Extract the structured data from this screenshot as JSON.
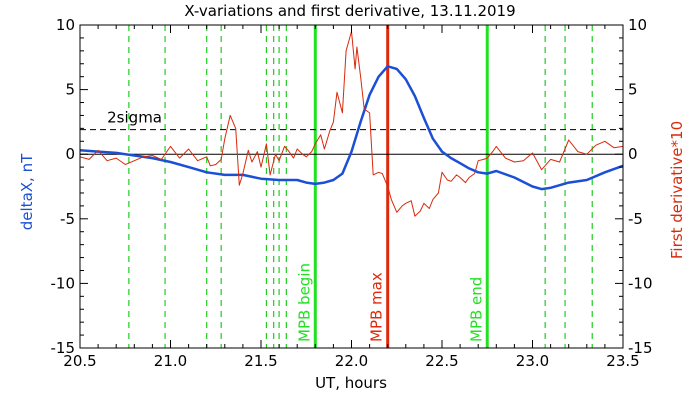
{
  "chart_data": {
    "type": "line",
    "title": "X-variations and first derivative, 13.11.2019",
    "xlabel": "UT, hours",
    "ylabel_left": "deltaX, nT",
    "ylabel_right": "First derivative*10",
    "xlim": [
      20.5,
      23.5
    ],
    "ylim_left": [
      -15,
      10
    ],
    "ylim_right": [
      -15,
      10
    ],
    "x_ticks": [
      "20.5",
      "21.0",
      "21.5",
      "22.0",
      "22.5",
      "23.0",
      "23.5"
    ],
    "x_tick_values": [
      20.5,
      21.0,
      21.5,
      22.0,
      22.5,
      23.0,
      23.5
    ],
    "y_ticks": [
      "10",
      "5",
      "0",
      "-5",
      "-10",
      "-15"
    ],
    "y_tick_values": [
      10,
      5,
      0,
      -5,
      -10,
      -15
    ],
    "grid": false,
    "colors": {
      "deltaX": "#1a4fd6",
      "derivative": "#d8290b",
      "mpb_begin_end": "#22e022",
      "mpb_max": "#e0280c",
      "dashed_green": "#22cc22",
      "axis": "#000000"
    },
    "series": [
      {
        "key": "deltaX",
        "axis": "left",
        "x": [
          20.5,
          20.6,
          20.7,
          20.8,
          20.9,
          21.0,
          21.1,
          21.2,
          21.3,
          21.4,
          21.5,
          21.6,
          21.7,
          21.75,
          21.8,
          21.85,
          21.9,
          21.95,
          22.0,
          22.05,
          22.1,
          22.15,
          22.2,
          22.25,
          22.3,
          22.35,
          22.4,
          22.45,
          22.5,
          22.55,
          22.6,
          22.65,
          22.7,
          22.75,
          22.8,
          22.9,
          23.0,
          23.05,
          23.1,
          23.2,
          23.3,
          23.4,
          23.5
        ],
        "y": [
          0.3,
          0.2,
          0.1,
          -0.1,
          -0.3,
          -0.6,
          -1.0,
          -1.4,
          -1.6,
          -1.6,
          -1.9,
          -2.0,
          -2.0,
          -2.2,
          -2.3,
          -2.2,
          -2.0,
          -1.5,
          0.2,
          2.5,
          4.6,
          6.0,
          6.8,
          6.6,
          5.8,
          4.5,
          2.8,
          1.2,
          0.2,
          -0.3,
          -0.7,
          -1.1,
          -1.4,
          -1.5,
          -1.3,
          -1.8,
          -2.5,
          -2.7,
          -2.6,
          -2.2,
          -2.0,
          -1.4,
          -0.9
        ]
      },
      {
        "key": "derivative",
        "axis": "right",
        "x": [
          20.5,
          20.55,
          20.6,
          20.65,
          20.7,
          20.75,
          20.8,
          20.85,
          20.9,
          20.95,
          21.0,
          21.05,
          21.1,
          21.15,
          21.2,
          21.22,
          21.25,
          21.28,
          21.3,
          21.33,
          21.36,
          21.38,
          21.4,
          21.43,
          21.45,
          21.48,
          21.5,
          21.53,
          21.55,
          21.58,
          21.6,
          21.63,
          21.65,
          21.68,
          21.7,
          21.73,
          21.75,
          21.78,
          21.8,
          21.83,
          21.85,
          21.88,
          21.9,
          21.92,
          21.95,
          21.97,
          22.0,
          22.02,
          22.03,
          22.05,
          22.07,
          22.1,
          22.12,
          22.15,
          22.17,
          22.2,
          22.22,
          22.25,
          22.28,
          22.3,
          22.33,
          22.35,
          22.38,
          22.4,
          22.43,
          22.45,
          22.48,
          22.5,
          22.53,
          22.55,
          22.58,
          22.6,
          22.63,
          22.65,
          22.68,
          22.7,
          22.73,
          22.75,
          22.78,
          22.8,
          22.85,
          22.9,
          22.95,
          23.0,
          23.05,
          23.1,
          23.15,
          23.2,
          23.25,
          23.3,
          23.35,
          23.4,
          23.45,
          23.5
        ],
        "y": [
          -0.2,
          -0.4,
          0.3,
          -0.5,
          -0.3,
          -0.8,
          -0.5,
          -0.2,
          -0.1,
          -0.4,
          0.6,
          -0.3,
          0.4,
          -0.5,
          -0.2,
          -0.9,
          -0.8,
          -0.4,
          1.2,
          3.0,
          2.0,
          -2.4,
          -1.5,
          0.3,
          -0.6,
          0.2,
          -1.0,
          0.8,
          -1.6,
          0.0,
          -0.5,
          0.6,
          0.3,
          -0.3,
          0.4,
          0.0,
          -0.2,
          0.2,
          0.8,
          1.5,
          0.4,
          1.8,
          2.5,
          4.8,
          3.2,
          8.0,
          9.5,
          6.6,
          8.3,
          6.0,
          3.5,
          3.2,
          -1.6,
          -1.4,
          -1.5,
          -2.5,
          -3.5,
          -4.5,
          -4.0,
          -3.8,
          -3.6,
          -4.8,
          -4.4,
          -3.8,
          -4.2,
          -3.5,
          -3.0,
          -1.4,
          -2.0,
          -2.1,
          -1.6,
          -1.8,
          -2.2,
          -1.8,
          -1.5,
          -0.5,
          -0.4,
          -0.3,
          0.2,
          0.6,
          -0.3,
          -0.6,
          -0.5,
          0.1,
          -1.2,
          -0.4,
          -0.6,
          1.1,
          0.2,
          0.0,
          0.7,
          1.0,
          0.5,
          0.6
        ]
      }
    ],
    "reference_lines": {
      "zero_line_value": 0,
      "two_sigma": {
        "label": "2sigma",
        "value": 1.9
      }
    },
    "dashed_green_lines_x": [
      20.77,
      20.97,
      21.2,
      21.28,
      21.53,
      21.57,
      21.6,
      21.64,
      23.07,
      23.18,
      23.33
    ],
    "event_lines": [
      {
        "label": "MPB begin",
        "x": 21.8,
        "kind": "mpb_begin_end"
      },
      {
        "label": "MPB max",
        "x": 22.2,
        "kind": "mpb_max"
      },
      {
        "label": "MPB end",
        "x": 22.75,
        "kind": "mpb_begin_end"
      }
    ]
  }
}
